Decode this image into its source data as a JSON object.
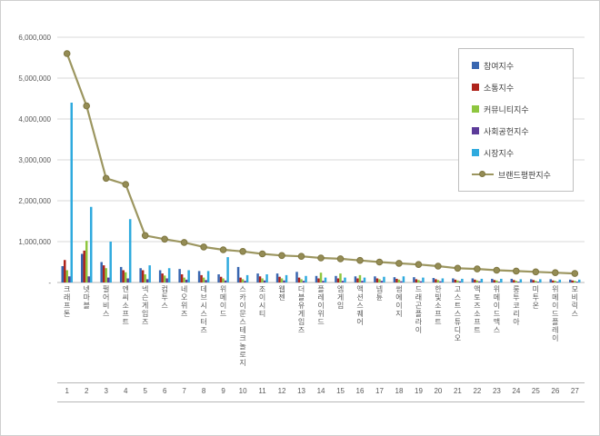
{
  "chart_data": {
    "type": "bar",
    "title": "",
    "grid": true,
    "legend_position": "right",
    "ylim": [
      0,
      6000000
    ],
    "yticks": [
      {
        "value": 0,
        "label": "-"
      },
      {
        "value": 1000000,
        "label": "1,000,000"
      },
      {
        "value": 2000000,
        "label": "2,000,000"
      },
      {
        "value": 3000000,
        "label": "3,000,000"
      },
      {
        "value": 4000000,
        "label": "4,000,000"
      },
      {
        "value": 5000000,
        "label": "5,000,000"
      },
      {
        "value": 6000000,
        "label": "6,000,000"
      }
    ],
    "categories": [
      "크래프톤",
      "넷마블",
      "펄어비스",
      "엔씨소프트",
      "넥슨게임즈",
      "컴투스",
      "네오위즈",
      "데브시스터즈",
      "위메이드",
      "스카이문스테크놀로지",
      "조이시티",
      "웹젠",
      "더블유게임즈",
      "플레이위드",
      "엠게임",
      "액션스퀘어",
      "넵튠",
      "썸에이지",
      "드래곤플라이",
      "한빛소프트",
      "고스트스튜디오",
      "액토즈소프트",
      "위메이드맥스",
      "룽투코리아",
      "미투온",
      "위메이드플레이",
      "모비릭스"
    ],
    "ranks": [
      "1",
      "2",
      "3",
      "4",
      "5",
      "6",
      "7",
      "8",
      "9",
      "10",
      "11",
      "12",
      "13",
      "14",
      "15",
      "16",
      "17",
      "18",
      "19",
      "20",
      "21",
      "22",
      "23",
      "24",
      "25",
      "26",
      "27"
    ],
    "series": [
      {
        "name": "참여지수",
        "color": "#3866B0",
        "values": [
          400000,
          700000,
          500000,
          380000,
          350000,
          300000,
          330000,
          280000,
          200000,
          380000,
          220000,
          220000,
          260000,
          160000,
          160000,
          150000,
          150000,
          130000,
          130000,
          110000,
          100000,
          100000,
          90000,
          90000,
          80000,
          80000,
          70000
        ]
      },
      {
        "name": "소통지수",
        "color": "#AF241C",
        "values": [
          550000,
          780000,
          420000,
          300000,
          300000,
          220000,
          200000,
          180000,
          140000,
          120000,
          150000,
          140000,
          120000,
          100000,
          100000,
          100000,
          100000,
          90000,
          80000,
          80000,
          70000,
          70000,
          60000,
          60000,
          60000,
          50000,
          50000
        ]
      },
      {
        "name": "커뮤니티지수",
        "color": "#8EC63F",
        "values": [
          300000,
          1020000,
          350000,
          250000,
          200000,
          170000,
          120000,
          120000,
          100000,
          80000,
          100000,
          100000,
          80000,
          240000,
          220000,
          180000,
          80000,
          70000,
          60000,
          60000,
          50000,
          50000,
          50000,
          40000,
          40000,
          40000,
          40000
        ]
      },
      {
        "name": "사회공헌지수",
        "color": "#5C3B99",
        "values": [
          150000,
          150000,
          120000,
          100000,
          80000,
          100000,
          70000,
          60000,
          50000,
          40000,
          50000,
          50000,
          40000,
          40000,
          40000,
          40000,
          40000,
          30000,
          30000,
          30000,
          30000,
          30000,
          20000,
          20000,
          20000,
          20000,
          20000
        ]
      },
      {
        "name": "시장지수",
        "color": "#2FAADE",
        "values": [
          4400000,
          1850000,
          1000000,
          1550000,
          420000,
          350000,
          300000,
          280000,
          620000,
          180000,
          200000,
          180000,
          160000,
          120000,
          120000,
          120000,
          140000,
          150000,
          120000,
          100000,
          90000,
          90000,
          90000,
          80000,
          80000,
          70000,
          70000
        ]
      }
    ],
    "line_series": {
      "name": "브랜드평판지수",
      "color": "#9C9660",
      "marker_fill": "#948C55",
      "marker_stroke": "#7E7640",
      "values": [
        5600000,
        4320000,
        2550000,
        2400000,
        1150000,
        1060000,
        980000,
        870000,
        800000,
        760000,
        700000,
        660000,
        640000,
        600000,
        580000,
        540000,
        500000,
        470000,
        440000,
        400000,
        350000,
        330000,
        300000,
        280000,
        260000,
        240000,
        220000
      ]
    }
  }
}
